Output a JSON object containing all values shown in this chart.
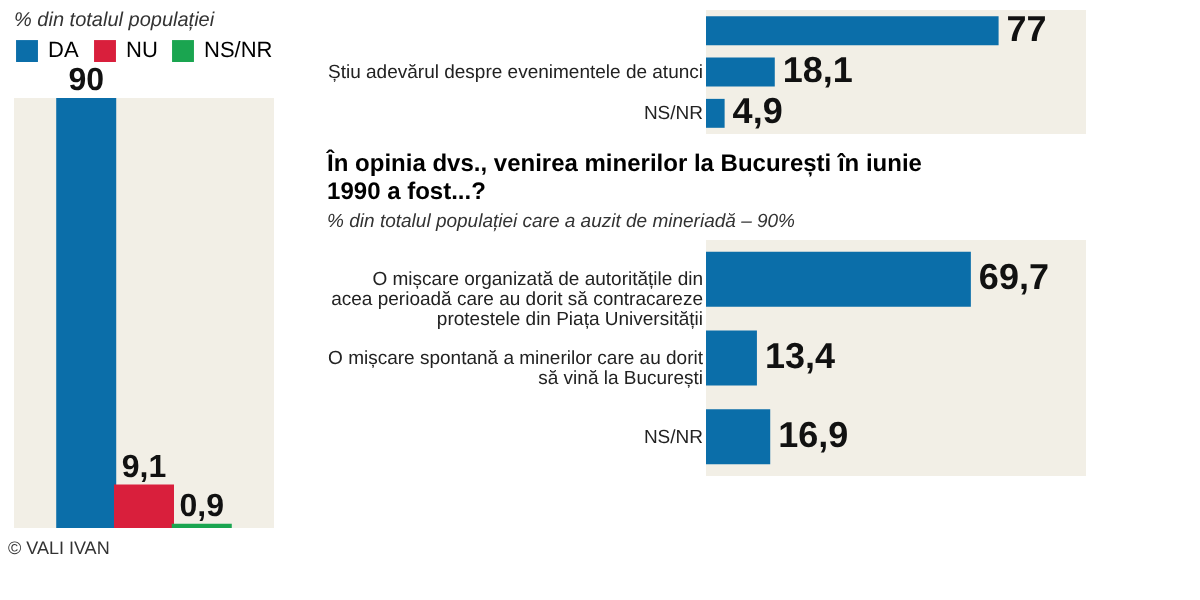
{
  "chart_data": [
    {
      "type": "bar",
      "subtitle": "% din totalul populației",
      "categories": [
        null
      ],
      "legend": "top",
      "annotations": [
        "© VALI IVAN"
      ],
      "series": [
        {
          "name": "DA",
          "color": "#0b6ea9",
          "values": [
            90
          ],
          "value_labels": [
            "90"
          ]
        },
        {
          "name": "NU",
          "color": "#d91f3c",
          "values": [
            9.1
          ],
          "value_labels": [
            "9,1"
          ]
        },
        {
          "name": "NS/NR",
          "color": "#1aa550",
          "values": [
            0.9
          ],
          "value_labels": [
            "0,9"
          ]
        }
      ]
    },
    {
      "type": "bar",
      "orientation": "horizontal",
      "categories": [
        null,
        "Știu adevărul despre evenimentele de atunci",
        "NS/NR"
      ],
      "series": [
        {
          "color": "#0b6ea9",
          "values": [
            77,
            18.1,
            4.9
          ],
          "value_labels": [
            "77",
            "18,1",
            "4,9"
          ]
        }
      ]
    },
    {
      "type": "bar",
      "orientation": "horizontal",
      "title": "În opinia dvs., venirea minerilor la București în iunie 1990 a fost...?",
      "subtitle": "% din totalul populației care a auzit de mineriadă – 90%",
      "categories": [
        "O mișcare organizată de autoritățile din acea perioadă care au dorit să contracareze protestele din Piața Universității",
        "O mișcare spontană a minerilor care au dorit să vină la București",
        "NS/NR"
      ],
      "series": [
        {
          "color": "#0b6ea9",
          "values": [
            69.7,
            13.4,
            16.9
          ],
          "value_labels": [
            "69,7",
            "13,4",
            "16,9"
          ]
        }
      ]
    }
  ]
}
